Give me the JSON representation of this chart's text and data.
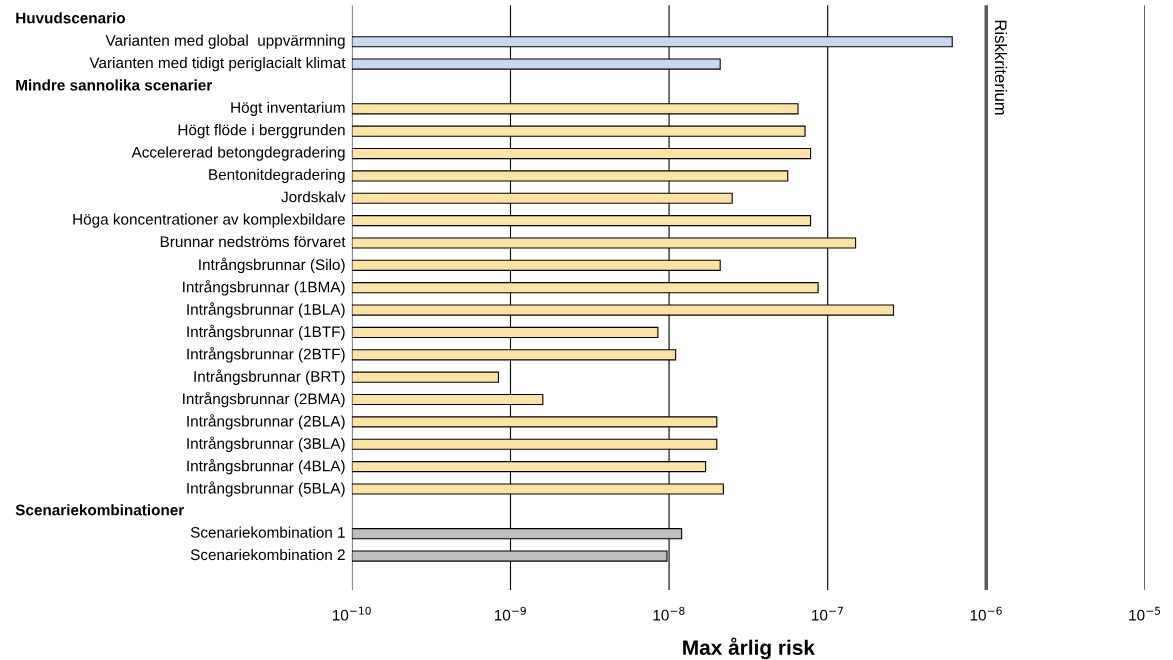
{
  "chart_data": {
    "type": "bar",
    "orientation": "horizontal",
    "log": "x",
    "xlabel": "Max årlig risk",
    "annotations": [
      "Huvudscenario",
      "Mindre sannolika scenarier",
      "Scenariekombinationer"
    ],
    "categories": [
      null,
      "Varianten med global  uppvärmning",
      "Varianten med tidigt periglacialt klimat",
      null,
      "Högt inventarium",
      "Högt flöde i berggrunden",
      "Accelererad betongdegradering",
      "Bentonitdegradering",
      "Jordskalv",
      "Höga koncentrationer av komplexbildare",
      "Brunnar nedströms förvaret",
      "Intrångsbrunnar (Silo)",
      "Intrångsbrunnar (1BMA)",
      "Intrångsbrunnar (1BLA)",
      "Intrångsbrunnar (1BTF)",
      "Intrångsbrunnar (2BTF)",
      "Intrångsbrunnar (BRT)",
      "Intrångsbrunnar (2BMA)",
      "Intrångsbrunnar (2BLA)",
      "Intrångsbrunnar (3BLA)",
      "Intrångsbrunnar (4BLA)",
      "Intrångsbrunnar (5BLA)",
      null,
      "Scenariekombination 1",
      "Scenariekombination 2"
    ],
    "values": [
      null,
      6.1e-07,
      2.1e-08,
      null,
      6.5e-08,
      7.2e-08,
      7.8e-08,
      5.6e-08,
      2.5e-08,
      7.8e-08,
      1.5e-07,
      2.1e-08,
      8.7e-08,
      2.6e-07,
      8.5e-09,
      1.1e-08,
      8.4e-10,
      1.6e-09,
      2e-08,
      2e-08,
      1.7e-08,
      2.2e-08,
      null,
      1.2e-08,
      9.7e-09
    ],
    "colors": [
      null,
      "#c6d9f1",
      "#c6d9f1",
      null,
      "#fde2a6",
      "#fde2a6",
      "#fde2a6",
      "#fde2a6",
      "#fde2a6",
      "#fde2a6",
      "#fde2a6",
      "#fde2a6",
      "#fde2a6",
      "#fde2a6",
      "#fde2a6",
      "#fde2a6",
      "#fde2a6",
      "#fde2a6",
      "#fde2a6",
      "#fde2a6",
      "#fde2a6",
      "#fde2a6",
      null,
      "#bfbfbf",
      "#bfbfbf"
    ],
    "xlim": [
      1e-10,
      1e-05
    ],
    "xticks": [
      {
        "value": 1e-10,
        "label": "10$^{−10}$"
      },
      {
        "value": 1e-09,
        "label": "10$^{−9}$"
      },
      {
        "value": 1e-08,
        "label": "10$^{−8}$"
      },
      {
        "value": 1e-07,
        "label": "10$^{−7}$"
      },
      {
        "value": 1e-06,
        "label": "10$^{−6}$"
      },
      {
        "value": 1e-05,
        "label": "10$^{−5}$"
      }
    ],
    "grid": "x",
    "ref_lines": [
      {
        "axis": "x",
        "value": 1e-06,
        "label": "Riskkriterium",
        "color": "#595959"
      }
    ]
  }
}
